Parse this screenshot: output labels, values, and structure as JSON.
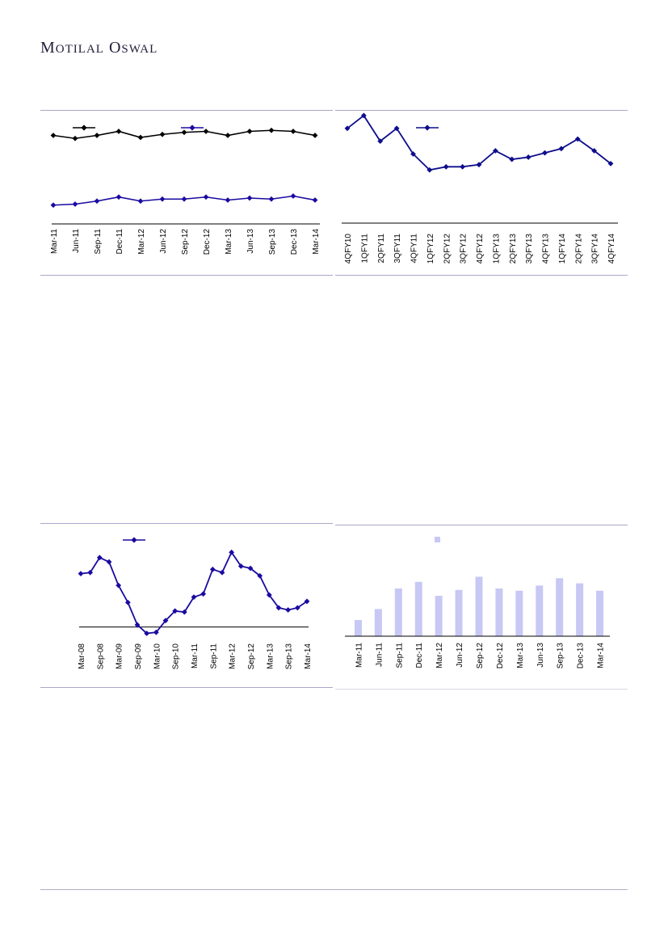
{
  "header": {
    "brand_first_1": "M",
    "brand_rest_1": "otilal",
    "brand_first_2": "O",
    "brand_rest_2": "swal"
  },
  "colors": {
    "black_series": "#000000",
    "purple_series": "#1a0aa0",
    "navy_line": "#0d0d8c",
    "bar_fill": "#c8c8f5",
    "rule": "#a8a8c8"
  },
  "chart_data": [
    {
      "type": "line",
      "categories": [
        "Mar-11",
        "Jun-11",
        "Sep-11",
        "Dec-11",
        "Mar-12",
        "Jun-12",
        "Sep-12",
        "Dec-12",
        "Mar-13",
        "Jun-13",
        "Sep-13",
        "Dec-13",
        "Mar-14"
      ],
      "series": [
        {
          "name": "",
          "color": "#000000",
          "marker": "diamond",
          "values": [
            82,
            79,
            82,
            86,
            80,
            83,
            85,
            86,
            82,
            86,
            87,
            86,
            82
          ]
        },
        {
          "name": "",
          "color": "#1a0aa0",
          "marker": "diamond",
          "values": [
            13,
            14,
            17,
            21,
            17,
            19,
            19,
            21,
            18,
            20,
            19,
            22,
            18
          ]
        }
      ],
      "ylim": [
        0,
        100
      ],
      "legend": "top",
      "grid": false
    },
    {
      "type": "line",
      "categories": [
        "4QFY10",
        "1QFY11",
        "2QFY11",
        "3QFY11",
        "4QFY11",
        "1QFY12",
        "2QFY12",
        "3QFY12",
        "4QFY12",
        "1QFY13",
        "2QFY13",
        "3QFY13",
        "4QFY13",
        "1QFY14",
        "2QFY14",
        "3QFY14",
        "4QFY14"
      ],
      "series": [
        {
          "name": "",
          "color": "#0d0d8c",
          "marker": "diamond",
          "values": [
            85,
            97,
            73,
            85,
            61,
            46,
            49,
            49,
            51,
            64,
            56,
            58,
            62,
            66,
            75,
            64,
            52
          ]
        }
      ],
      "ylim": [
        0,
        100
      ],
      "legend": "top",
      "grid": false
    },
    {
      "type": "line",
      "categories": [
        "Mar-08",
        "Jun-08",
        "Sep-08",
        "Dec-08",
        "Mar-09",
        "Jun-09",
        "Sep-09",
        "Dec-09",
        "Mar-10",
        "Jun-10",
        "Sep-10",
        "Dec-10",
        "Mar-11",
        "Jun-11",
        "Sep-11",
        "Dec-11",
        "Mar-12",
        "Jun-12",
        "Sep-12",
        "Dec-12",
        "Mar-13",
        "Jun-13",
        "Sep-13",
        "Dec-13",
        "Mar-14"
      ],
      "x_tick_labels": [
        "Mar-08",
        "Sep-08",
        "Mar-09",
        "Sep-09",
        "Mar-10",
        "Sep-10",
        "Mar-11",
        "Sep-11",
        "Mar-12",
        "Sep-12",
        "Mar-13",
        "Sep-13",
        "Mar-14"
      ],
      "series": [
        {
          "name": "",
          "color": "#1a0aa0",
          "marker": "diamond",
          "values": [
            50,
            51,
            65,
            61,
            39,
            23,
            2,
            -6,
            -5,
            6,
            15,
            14,
            28,
            31,
            54,
            51,
            70,
            57,
            55,
            48,
            30,
            18,
            16,
            18,
            24
          ]
        }
      ],
      "baseline": 0,
      "ylim": [
        -20,
        80
      ],
      "legend": "top",
      "grid": false
    },
    {
      "type": "bar",
      "categories": [
        "Mar-11",
        "Jun-11",
        "Sep-11",
        "Dec-11",
        "Mar-12",
        "Jun-12",
        "Sep-12",
        "Dec-12",
        "Mar-13",
        "Jun-13",
        "Sep-13",
        "Dec-13",
        "Mar-14"
      ],
      "series": [
        {
          "name": "",
          "color": "#c8c8f5",
          "values": [
            22,
            37,
            65,
            74,
            55,
            63,
            81,
            65,
            62,
            69,
            79,
            72,
            62
          ]
        }
      ],
      "ylim": [
        0,
        120
      ],
      "legend": "top",
      "grid": false
    }
  ]
}
